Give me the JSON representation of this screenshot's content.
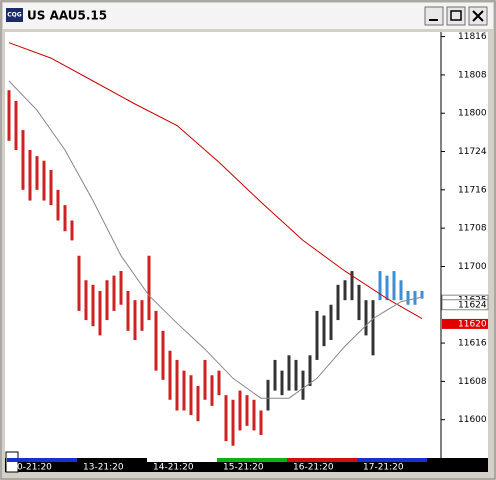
{
  "window": {
    "title": "US AAU5.15",
    "icon": "CQG"
  },
  "chart_data": {
    "type": "range-bar",
    "categories": [
      "0-21:20",
      "13-21:20",
      "14-21:20",
      "15-21:20",
      "16-21:20",
      "17-21:20"
    ],
    "category_colors": [
      "#1a2fd0",
      "#000000",
      "#ffffff",
      "#10b010",
      "#d01010",
      "#1a2fd0"
    ],
    "bars_per_category": 10,
    "high": [
      118.15,
      118.08,
      117.89,
      117.76,
      117.72,
      117.69,
      117.63,
      117.5,
      117.4,
      117.3,
      117.07,
      116.91,
      116.88,
      116.84,
      116.91,
      116.94,
      116.97,
      116.84,
      116.78,
      116.78,
      117.07,
      116.71,
      116.58,
      116.45,
      116.39,
      116.32,
      116.29,
      116.22,
      116.39,
      116.29,
      116.32,
      116.16,
      116.13,
      116.19,
      116.16,
      116.13,
      116.06,
      116.26,
      116.39,
      116.32,
      116.42,
      116.39,
      116.32,
      116.42,
      116.71,
      116.68,
      116.75,
      116.88,
      116.91,
      116.97,
      116.88,
      116.78,
      116.78,
      116.97,
      116.94,
      116.97,
      116.91,
      116.84,
      116.84,
      116.84
    ],
    "low": [
      117.82,
      117.76,
      117.5,
      117.43,
      117.5,
      117.43,
      117.4,
      117.3,
      117.23,
      117.17,
      116.71,
      116.65,
      116.61,
      116.55,
      116.65,
      116.71,
      116.75,
      116.58,
      116.52,
      116.58,
      116.65,
      116.32,
      116.26,
      116.13,
      116.06,
      116.06,
      116.03,
      115.99,
      116.13,
      116.09,
      116.16,
      115.86,
      115.83,
      115.93,
      115.96,
      115.93,
      115.9,
      116.06,
      116.19,
      116.16,
      116.19,
      116.19,
      116.13,
      116.22,
      116.39,
      116.48,
      116.52,
      116.65,
      116.78,
      116.78,
      116.65,
      116.55,
      116.42,
      116.78,
      116.78,
      116.78,
      116.78,
      116.75,
      116.75,
      116.79
    ],
    "bar_colors": [
      "#cc2222",
      "#cc2222",
      "#cc2222",
      "#cc2222",
      "#cc2222",
      "#cc2222",
      "#cc2222",
      "#cc2222",
      "#cc2222",
      "#cc2222",
      "#cc2222",
      "#cc2222",
      "#cc2222",
      "#cc2222",
      "#cc2222",
      "#cc2222",
      "#cc2222",
      "#cc2222",
      "#cc2222",
      "#cc2222",
      "#cc2222",
      "#cc2222",
      "#cc2222",
      "#cc2222",
      "#cc2222",
      "#cc2222",
      "#cc2222",
      "#cc2222",
      "#cc2222",
      "#cc2222",
      "#cc2222",
      "#cc2222",
      "#cc2222",
      "#cc2222",
      "#cc2222",
      "#cc2222",
      "#cc2222",
      "#333333",
      "#333333",
      "#333333",
      "#333333",
      "#333333",
      "#333333",
      "#333333",
      "#333333",
      "#333333",
      "#333333",
      "#333333",
      "#333333",
      "#333333",
      "#333333",
      "#333333",
      "#333333",
      "#3a8fd8",
      "#3a8fd8",
      "#3a8fd8",
      "#3a8fd8",
      "#3a8fd8",
      "#3a8fd8",
      "#3a8fd8"
    ],
    "lines": [
      {
        "color": "#cc0000",
        "x": [
          0,
          6,
          12,
          18,
          24,
          30,
          36,
          42,
          48,
          54,
          59
        ],
        "values": [
          118.46,
          118.36,
          118.21,
          118.06,
          117.92,
          117.68,
          117.42,
          117.17,
          116.97,
          116.79,
          116.66
        ]
      },
      {
        "color": "#888888",
        "x": [
          0,
          4,
          8,
          12,
          16,
          20,
          24,
          28,
          32,
          36,
          40,
          44,
          48,
          52,
          56,
          59
        ],
        "values": [
          118.21,
          118.02,
          117.76,
          117.43,
          117.07,
          116.81,
          116.63,
          116.46,
          116.27,
          116.14,
          116.14,
          116.27,
          116.48,
          116.66,
          116.77,
          116.8
        ]
      }
    ],
    "ylim": [
      115.75,
      118.53
    ],
    "yticks": [
      {
        "value": 118.5,
        "label": "11816"
      },
      {
        "value": 118.25,
        "label": "11808"
      },
      {
        "value": 118.0,
        "label": "11800"
      },
      {
        "value": 117.75,
        "label": "11724"
      },
      {
        "value": 117.5,
        "label": "11716"
      },
      {
        "value": 117.25,
        "label": "11708"
      },
      {
        "value": 117.0,
        "label": "11700"
      },
      {
        "value": 116.5,
        "label": "11616"
      },
      {
        "value": 116.25,
        "label": "11608"
      },
      {
        "value": 116.0,
        "label": "11600"
      }
    ],
    "price_markers": [
      {
        "value": 116.78,
        "label": "11625",
        "color": "#ffffff"
      },
      {
        "value": 116.75,
        "label": "11624",
        "color": "#ffffff"
      },
      {
        "value": 116.625,
        "label": "11620",
        "color": "#e00000"
      }
    ]
  }
}
